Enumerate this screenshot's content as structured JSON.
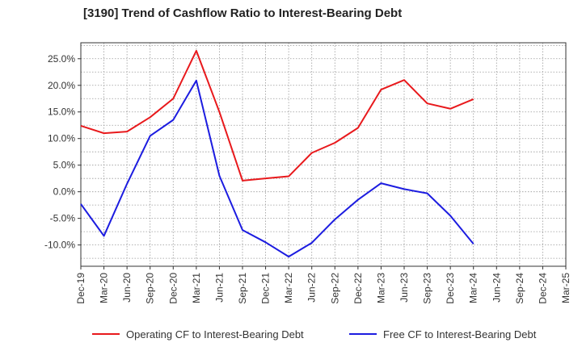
{
  "chart_data": {
    "type": "line",
    "title": "[3190]  Trend of Cashflow Ratio to Interest-Bearing Debt",
    "xlabel": "",
    "ylabel": "",
    "ylim": [
      -14,
      28
    ],
    "yticks": [
      -10,
      -5,
      0,
      5,
      10,
      15,
      20,
      25
    ],
    "ytick_labels": [
      "-10.0%",
      "-5.0%",
      "0.0%",
      "5.0%",
      "10.0%",
      "15.0%",
      "20.0%",
      "25.0%"
    ],
    "x_ticks": [
      "Dec-19",
      "Mar-20",
      "Jun-20",
      "Sep-20",
      "Dec-20",
      "Mar-21",
      "Jun-21",
      "Sep-21",
      "Dec-21",
      "Mar-22",
      "Jun-22",
      "Sep-22",
      "Dec-22",
      "Mar-23",
      "Jun-23",
      "Sep-23",
      "Dec-23",
      "Mar-24",
      "Jun-24",
      "Sep-24",
      "Dec-24",
      "Mar-25"
    ],
    "grid": true,
    "legend_position": "bottom",
    "series": [
      {
        "name": "Operating CF to Interest-Bearing Debt",
        "color": "#e8191c",
        "values": [
          12.4,
          11.0,
          11.3,
          14.0,
          17.5,
          26.5,
          15.0,
          2.1,
          2.5,
          2.9,
          7.3,
          9.2,
          12.0,
          19.2,
          21.0,
          16.6,
          15.6,
          17.4,
          null,
          null,
          null,
          null
        ]
      },
      {
        "name": "Free CF to Interest-Bearing Debt",
        "color": "#1c1ce0",
        "values": [
          -2.3,
          -8.3,
          1.5,
          10.5,
          13.5,
          20.9,
          3.0,
          -7.2,
          -9.5,
          -12.2,
          -9.6,
          -5.2,
          -1.5,
          1.6,
          0.5,
          -0.3,
          -4.5,
          -9.8,
          null,
          null,
          null,
          null
        ]
      }
    ]
  }
}
